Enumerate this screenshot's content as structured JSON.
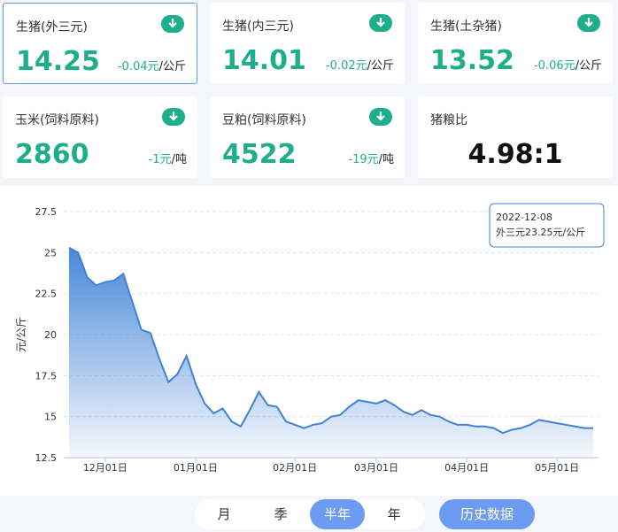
{
  "cards": [
    {
      "name": "生猪(外三元)",
      "price": "14.25",
      "change": "-0.04元",
      "unit": "/公斤"
    },
    {
      "name": "生猪(内三元)",
      "price": "14.01",
      "change": "-0.02元",
      "unit": "/公斤"
    },
    {
      "name": "生猪(土杂猪)",
      "price": "13.52",
      "change": "-0.06元",
      "unit": "/公斤"
    },
    {
      "name": "玉米(饲料原料)",
      "price": "2860",
      "change": "-1元",
      "unit": "/吨"
    },
    {
      "name": "豆粕(饲料原料)",
      "price": "4522",
      "change": "-19元",
      "unit": "/吨"
    },
    {
      "name": "猪粮比",
      "ratio": "4.98:1"
    }
  ],
  "chart_data": {
    "type": "area",
    "y_label": "元/公斤",
    "categories": [
      null,
      null,
      null,
      null,
      "12月01日",
      null,
      null,
      null,
      null,
      null,
      null,
      null,
      null,
      null,
      "01月01日",
      null,
      null,
      null,
      null,
      null,
      null,
      null,
      null,
      null,
      null,
      "02月01日",
      null,
      null,
      null,
      null,
      null,
      null,
      null,
      null,
      "03月01日",
      null,
      null,
      null,
      null,
      null,
      null,
      null,
      null,
      null,
      "04月01日",
      null,
      null,
      null,
      null,
      null,
      null,
      null,
      null,
      null,
      "05月01日",
      null,
      null,
      null,
      null
    ],
    "values": [
      25.3,
      25.0,
      23.5,
      23.0,
      23.2,
      23.3,
      23.7,
      22.0,
      20.3,
      20.1,
      18.5,
      17.1,
      17.6,
      18.7,
      17.0,
      15.8,
      15.2,
      15.5,
      14.7,
      14.4,
      15.4,
      16.5,
      15.7,
      15.6,
      14.7,
      14.5,
      14.3,
      14.5,
      14.6,
      15.0,
      15.1,
      15.6,
      16.0,
      15.9,
      15.8,
      16.0,
      15.7,
      15.3,
      15.1,
      15.4,
      15.1,
      15.0,
      14.7,
      14.5,
      14.5,
      14.4,
      14.4,
      14.3,
      14.0,
      14.2,
      14.3,
      14.5,
      14.8,
      14.7,
      14.6,
      14.5,
      14.4,
      14.3,
      14.3
    ],
    "color": "#3f82d6",
    "ylim": [
      12.5,
      27.5
    ],
    "yticks": [
      12.5,
      15,
      17.5,
      20,
      22.5,
      25,
      27.5
    ],
    "grid": true,
    "tooltip": {
      "date": "2022-12-08",
      "text": "外三元23.25元/公斤"
    }
  },
  "periods": [
    "月",
    "季",
    "半年",
    "年"
  ],
  "selected_period": 2,
  "history_button": "历史数据"
}
